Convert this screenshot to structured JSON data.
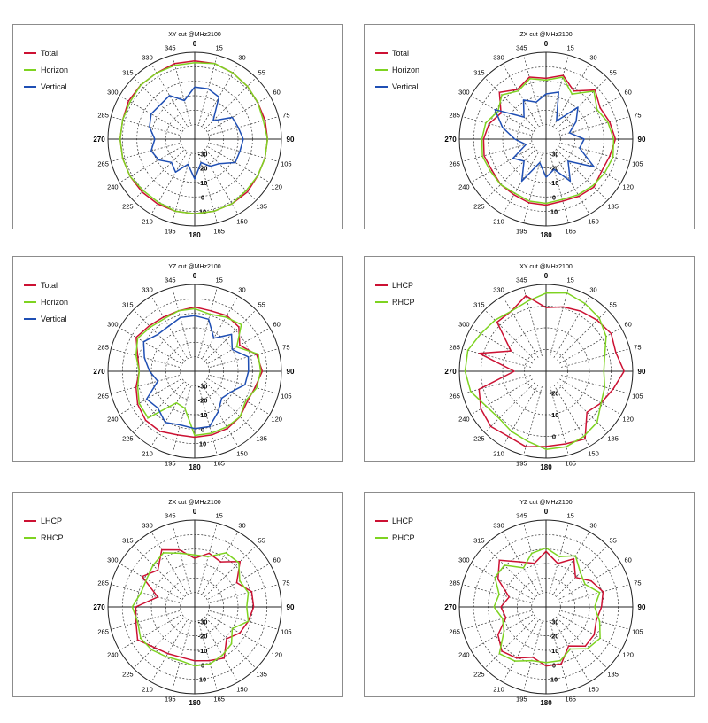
{
  "colors": {
    "red": "#cc1133",
    "green": "#7ed321",
    "blue": "#1f4fb4"
  },
  "chart_data": [
    {
      "type": "polar",
      "title": "XY cut @MHz2100",
      "angle_labels": [
        "0",
        "15",
        "30",
        "55",
        "60",
        "75",
        "90",
        "105",
        "120",
        "135",
        "150",
        "165",
        "180",
        "195",
        "210",
        "225",
        "240",
        "265",
        "270",
        "285",
        "300",
        "315",
        "330",
        "345"
      ],
      "radial_labels": [
        "-30",
        "-20",
        "-10",
        "0",
        "10"
      ],
      "rlim": [
        -40,
        10
      ],
      "series": [
        {
          "name": "Total",
          "color": "#cc1133",
          "values": [
            5,
            5,
            4,
            3,
            2,
            2,
            2,
            2,
            2,
            3,
            3,
            3,
            3,
            3,
            3,
            3,
            3,
            3,
            3,
            3,
            4,
            4,
            4,
            5
          ]
        },
        {
          "name": "Horizon",
          "color": "#7ed321",
          "values": [
            4,
            5,
            4,
            3,
            2,
            1,
            2,
            2,
            2,
            2,
            3,
            3,
            3,
            3,
            2,
            2,
            3,
            3,
            3,
            3,
            3,
            4,
            4,
            4
          ]
        },
        {
          "name": "Vertical",
          "color": "#1f4fb4",
          "values": [
            -10,
            -10,
            -12,
            -25,
            -15,
            -14,
            -12,
            -13,
            -13,
            -20,
            -22,
            -26,
            -17,
            -25,
            -18,
            -21,
            -16,
            -14,
            -17,
            -13,
            -11,
            -12,
            -11,
            -17
          ]
        }
      ]
    },
    {
      "type": "polar",
      "title": "ZX cut @MHz2100",
      "angle_labels": [
        "0",
        "15",
        "30",
        "55",
        "60",
        "75",
        "90",
        "105",
        "120",
        "135",
        "150",
        "165",
        "180",
        "195",
        "210",
        "225",
        "240",
        "265",
        "270",
        "285",
        "300",
        "315",
        "330",
        "345"
      ],
      "radial_labels": [
        "-30",
        "-20",
        "-10",
        "0",
        "10"
      ],
      "rlim": [
        -40,
        10
      ],
      "series": [
        {
          "name": "Total",
          "color": "#cc1133",
          "values": [
            -5,
            -2,
            -8,
            0,
            -4,
            -2,
            0,
            -2,
            -3,
            -1,
            -2,
            -3,
            -2,
            -2,
            -3,
            -3,
            -4,
            -3,
            -4,
            -6,
            -10,
            -2,
            -7,
            -3
          ]
        },
        {
          "name": "Horizon",
          "color": "#7ed321",
          "values": [
            -6,
            -3,
            -10,
            -1,
            -6,
            -3,
            -1,
            0,
            -1,
            -2,
            -3,
            -4,
            -3,
            -3,
            -4,
            -3,
            -3,
            -2,
            -3,
            -4,
            -8,
            -4,
            -8,
            -4
          ]
        },
        {
          "name": "Vertical",
          "color": "#1f4fb4",
          "values": [
            -14,
            -12,
            -28,
            -14,
            -20,
            -26,
            -18,
            -20,
            -8,
            -22,
            -12,
            -22,
            -18,
            -26,
            -12,
            -22,
            -18,
            -28,
            -22,
            -14,
            -6,
            -22,
            -14,
            -18
          ]
        }
      ]
    },
    {
      "type": "polar",
      "title": "YZ cut @MHz2100",
      "angle_labels": [
        "0",
        "15",
        "30",
        "55",
        "60",
        "75",
        "90",
        "105",
        "120",
        "135",
        "150",
        "165",
        "180",
        "195",
        "210",
        "225",
        "240",
        "265",
        "270",
        "285",
        "300",
        "315",
        "330",
        "345"
      ],
      "radial_labels": [
        "-30",
        "-20",
        "-10",
        "0",
        "10"
      ],
      "rlim": [
        -40,
        10
      ],
      "series": [
        {
          "name": "Total",
          "color": "#cc1133",
          "values": [
            -3,
            -4,
            -3,
            -4,
            -10,
            -3,
            -1,
            -4,
            -5,
            -3,
            -2,
            -2,
            -2,
            -2,
            0,
            0,
            -2,
            -5,
            -8,
            -6,
            -1,
            -3,
            -4,
            -4
          ]
        },
        {
          "name": "Horizon",
          "color": "#7ed321",
          "values": [
            -4,
            -6,
            -4,
            -2,
            -12,
            -2,
            -2,
            -3,
            -6,
            -3,
            -3,
            -3,
            -3,
            -18,
            -19,
            -2,
            -3,
            -6,
            -8,
            -5,
            -2,
            -4,
            -5,
            -4
          ]
        },
        {
          "name": "Vertical",
          "color": "#1f4fb4",
          "values": [
            -8,
            -9,
            -18,
            -10,
            -15,
            -8,
            -9,
            -10,
            -16,
            -18,
            -13,
            -7,
            -7,
            -8,
            -6,
            -10,
            -8,
            -18,
            -14,
            -10,
            -6,
            -10,
            -10,
            -8
          ]
        }
      ]
    },
    {
      "type": "polar",
      "title": "XY cut @MHz2100",
      "angle_labels": [
        "0",
        "15",
        "30",
        "55",
        "60",
        "75",
        "90",
        "105",
        "120",
        "135",
        "150",
        "165",
        "180",
        "195",
        "210",
        "225",
        "240",
        "265",
        "270",
        "285",
        "300",
        "315",
        "330",
        "345"
      ],
      "radial_labels": [
        "-20",
        "-10",
        "0"
      ],
      "rlim": [
        -30,
        0
      ],
      "series": [
        {
          "name": "LHCP",
          "color": "#cc1133",
          "values": [
            -8,
            -7,
            -6,
            -5,
            -4,
            -5,
            -3,
            -6,
            -8,
            -10,
            -3,
            -4,
            -4,
            -3,
            -4,
            -3,
            -4,
            -6,
            -19,
            -6,
            -16,
            -6,
            -6,
            -3
          ]
        },
        {
          "name": "RHCP",
          "color": "#7ed321",
          "values": [
            -3,
            -2,
            -3,
            -4,
            -6,
            -9,
            -10,
            -9,
            -8,
            -5,
            -4,
            -3,
            -3,
            -5,
            -6,
            -7,
            -6,
            -3,
            -2,
            -2,
            -4,
            -5,
            -6,
            -5
          ]
        }
      ]
    },
    {
      "type": "polar",
      "title": "ZX cut @MHz2100",
      "angle_labels": [
        "0",
        "15",
        "30",
        "55",
        "60",
        "75",
        "90",
        "105",
        "120",
        "135",
        "150",
        "165",
        "180",
        "195",
        "210",
        "225",
        "240",
        "265",
        "270",
        "285",
        "300",
        "315",
        "330",
        "345"
      ],
      "radial_labels": [
        "-30",
        "-20",
        "-10",
        "0",
        "10"
      ],
      "rlim": [
        -40,
        10
      ],
      "series": [
        {
          "name": "LHCP",
          "color": "#cc1133",
          "values": [
            -12,
            -8,
            -10,
            -3,
            -12,
            -6,
            -6,
            -8,
            -10,
            -14,
            -6,
            -8,
            -9,
            -10,
            -9,
            -7,
            -2,
            -5,
            -6,
            -18,
            -5,
            -10,
            -2,
            -6
          ]
        },
        {
          "name": "RHCP",
          "color": "#7ed321",
          "values": [
            -10,
            -10,
            -4,
            -4,
            -10,
            -8,
            -10,
            -8,
            -15,
            -10,
            -8,
            -6,
            -6,
            -8,
            -7,
            -5,
            -4,
            -6,
            -4,
            -8,
            -8,
            -6,
            -4,
            -8
          ]
        }
      ]
    },
    {
      "type": "polar",
      "title": "YZ cut @MHz2100",
      "angle_labels": [
        "0",
        "15",
        "30",
        "55",
        "60",
        "75",
        "90",
        "105",
        "120",
        "135",
        "150",
        "165",
        "180",
        "195",
        "210",
        "225",
        "240",
        "265",
        "270",
        "285",
        "300",
        "315",
        "330",
        "345"
      ],
      "radial_labels": [
        "-30",
        "-20",
        "-10",
        "0",
        "10"
      ],
      "rlim": [
        -40,
        10
      ],
      "series": [
        {
          "name": "LHCP",
          "color": "#cc1133",
          "values": [
            -8,
            -14,
            -8,
            -16,
            -10,
            -6,
            -8,
            -10,
            -8,
            -8,
            -14,
            -6,
            -6,
            -10,
            -6,
            -4,
            -8,
            -16,
            -14,
            -18,
            -8,
            -2,
            -10,
            -14
          ]
        },
        {
          "name": "RHCP",
          "color": "#7ed321",
          "values": [
            -6,
            -10,
            -6,
            -12,
            -14,
            -8,
            -12,
            -8,
            -4,
            -6,
            -12,
            -8,
            -8,
            -8,
            -4,
            -2,
            -12,
            -14,
            -10,
            -12,
            -6,
            -6,
            -14,
            -8
          ]
        }
      ]
    }
  ]
}
